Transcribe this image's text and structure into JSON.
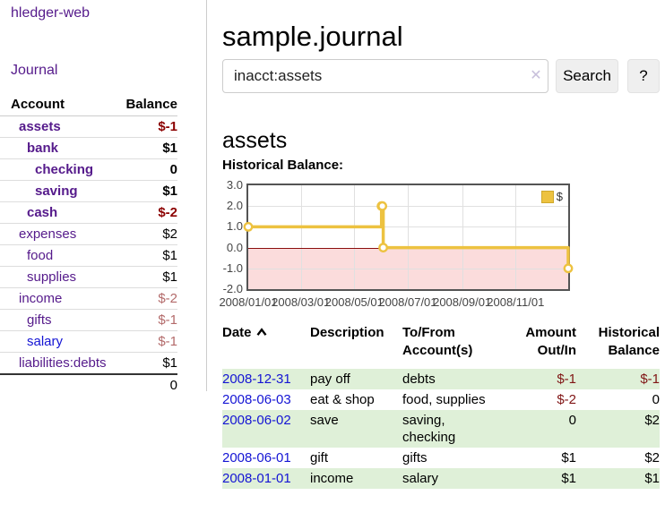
{
  "app": {
    "title": "hledger-web",
    "nav_journal_label": "Journal"
  },
  "sidebar": {
    "accounts_header": {
      "account": "Account",
      "balance": "Balance"
    },
    "accounts": [
      {
        "label": "assets",
        "indent": 0,
        "bold": true,
        "link": "purple",
        "balance": "$-1",
        "neg": "strong"
      },
      {
        "label": "bank",
        "indent": 1,
        "bold": true,
        "link": "purple",
        "balance": "$1",
        "neg": null
      },
      {
        "label": "checking",
        "indent": 2,
        "bold": true,
        "link": "purple",
        "balance": "0",
        "neg": null
      },
      {
        "label": "saving",
        "indent": 2,
        "bold": true,
        "link": "purple",
        "balance": "$1",
        "neg": null
      },
      {
        "label": "cash",
        "indent": 1,
        "bold": true,
        "link": "purple",
        "balance": "$-2",
        "neg": "strong"
      },
      {
        "label": "expenses",
        "indent": 0,
        "bold": false,
        "link": "purple",
        "balance": "$2",
        "neg": null
      },
      {
        "label": "food",
        "indent": 1,
        "bold": false,
        "link": "purple",
        "balance": "$1",
        "neg": null
      },
      {
        "label": "supplies",
        "indent": 1,
        "bold": false,
        "link": "purple",
        "balance": "$1",
        "neg": null
      },
      {
        "label": "income",
        "indent": 0,
        "bold": false,
        "link": "purple",
        "balance": "$-2",
        "neg": "soft"
      },
      {
        "label": "gifts",
        "indent": 1,
        "bold": false,
        "link": "purple",
        "balance": "$-1",
        "neg": "soft"
      },
      {
        "label": "salary",
        "indent": 1,
        "bold": false,
        "link": "blue",
        "balance": "$-1",
        "neg": "soft"
      },
      {
        "label": "liabilities:debts",
        "indent": 0,
        "bold": false,
        "link": "purple",
        "balance": "$1",
        "neg": null
      }
    ],
    "total": "0"
  },
  "main": {
    "title": "sample.journal",
    "search": {
      "query": "inacct:assets",
      "clear_icon": "✕",
      "button_label": "Search",
      "help_button_label": "?"
    },
    "account_heading": "assets",
    "chart_label": "Historical Balance:"
  },
  "chart_data": {
    "type": "line",
    "title": "Historical Balance",
    "step": true,
    "series": [
      {
        "name": "$",
        "points": [
          [
            "2008/01/01",
            1
          ],
          [
            "2008/06/01",
            2
          ],
          [
            "2008/06/02",
            2
          ],
          [
            "2008/06/03",
            0
          ],
          [
            "2008/12/31",
            -1
          ]
        ]
      }
    ],
    "x_ticks": [
      "2008/01/01",
      "2008/03/01",
      "2008/05/01",
      "2008/07/01",
      "2008/09/01",
      "2008/11/01"
    ],
    "y_ticks": [
      "3.0",
      "2.0",
      "1.0",
      "0.0",
      "-1.0",
      "-2.0"
    ],
    "ylim": [
      -2,
      3
    ],
    "xlim": [
      "2008/01/01",
      "2008/12/31"
    ],
    "legend": {
      "position": "top-right"
    },
    "grid": true,
    "colors": {
      "line": "#edc240",
      "point_fill": "#ffffff",
      "negative_region": "#fbdcdc",
      "zero_line": "#8b0f0f",
      "gridline": "#e0e0e0",
      "border": "#545454"
    }
  },
  "register": {
    "headers": {
      "date": "Date",
      "description": "Description",
      "accounts": "To/From\nAccount(s)",
      "amount": "Amount\nOut/In",
      "balance": "Historical\nBalance"
    },
    "rows": [
      {
        "date": "2008-12-31",
        "description": "pay off",
        "accounts": "debts",
        "amount": "$-1",
        "amount_neg": true,
        "balance": "$-1",
        "balance_neg": true
      },
      {
        "date": "2008-06-03",
        "description": "eat & shop",
        "accounts": "food, supplies",
        "amount": "$-2",
        "amount_neg": true,
        "balance": "0",
        "balance_neg": false
      },
      {
        "date": "2008-06-02",
        "description": "save",
        "accounts": "saving,\nchecking",
        "amount": "0",
        "amount_neg": false,
        "balance": "$2",
        "balance_neg": false
      },
      {
        "date": "2008-06-01",
        "description": "gift",
        "accounts": "gifts",
        "amount": "$1",
        "amount_neg": false,
        "balance": "$2",
        "balance_neg": false
      },
      {
        "date": "2008-01-01",
        "description": "income",
        "accounts": "salary",
        "amount": "$1",
        "amount_neg": false,
        "balance": "$1",
        "balance_neg": false
      }
    ]
  }
}
